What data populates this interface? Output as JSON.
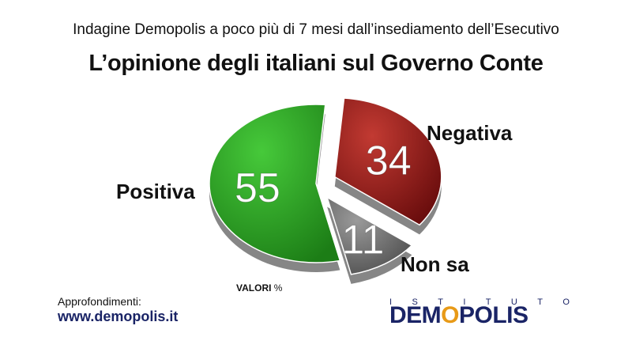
{
  "header": {
    "subtitle": "Indagine Demopolis a poco più di 7 mesi dall’insediamento dell’Esecutivo",
    "title": "L’opinione degli italiani sul Governo Conte"
  },
  "chart_data": {
    "type": "pie",
    "title": "L’opinione degli italiani sul Governo Conte",
    "subtitle": "Indagine Demopolis a poco più di 7 mesi dall’insediamento dell’Esecutivo",
    "unit_note": "VALORI %",
    "slices": [
      {
        "label": "Negativa",
        "value": 34,
        "color": "#8f1414"
      },
      {
        "label": "Non sa",
        "value": 11,
        "color": "#6e6e6e"
      },
      {
        "label": "Positiva",
        "value": 55,
        "color": "#2a9e20"
      }
    ],
    "exploded": [
      "Negativa",
      "Non sa"
    ]
  },
  "footer": {
    "more_label": "Approfondimenti:",
    "site": "www.demopolis.it",
    "unit_prefix": "VALORI",
    "unit_symbol": "%"
  },
  "logo": {
    "top_letters": [
      "I",
      "S",
      "T",
      "I",
      "T",
      "U",
      "T",
      "O"
    ],
    "name_start": "DEM",
    "name_o": "O",
    "name_end": "POLIS"
  }
}
